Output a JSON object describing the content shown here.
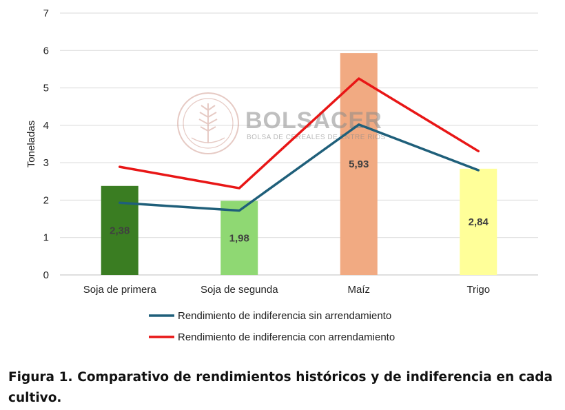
{
  "chart_data": {
    "type": "bar",
    "categories": [
      "Soja de primera",
      "Soja de segunda",
      "Maíz",
      "Trigo"
    ],
    "bar_values": [
      2.38,
      1.98,
      5.93,
      2.84
    ],
    "bar_labels": [
      "2,38",
      "1,98",
      "5,93",
      "2,84"
    ],
    "bar_colors": [
      "#3a7d22",
      "#8fd873",
      "#f1aa82",
      "#ffff99"
    ],
    "series": [
      {
        "name": "Rendimiento de indiferencia sin arrendamiento",
        "type": "line",
        "color": "#1f5f7a",
        "values": [
          1.93,
          1.72,
          4.02,
          2.8
        ]
      },
      {
        "name": "Rendimiento de indiferencia con arrendamiento",
        "type": "line",
        "color": "#e81616",
        "values": [
          2.89,
          2.32,
          5.25,
          3.31
        ]
      }
    ],
    "ylabel": "Toneladas",
    "xlabel": "",
    "ylim": [
      0,
      7
    ],
    "yticks": [
      0,
      1,
      2,
      3,
      4,
      5,
      6,
      7
    ],
    "grid": true,
    "legend_position": "bottom"
  },
  "watermark": {
    "title": "BOLSACER",
    "subtitle": "BOLSA DE CEREALES DE ENTRE RIOS"
  },
  "caption": "Figura 1. Comparativo de rendimientos históricos y de indiferencia en cada cultivo."
}
